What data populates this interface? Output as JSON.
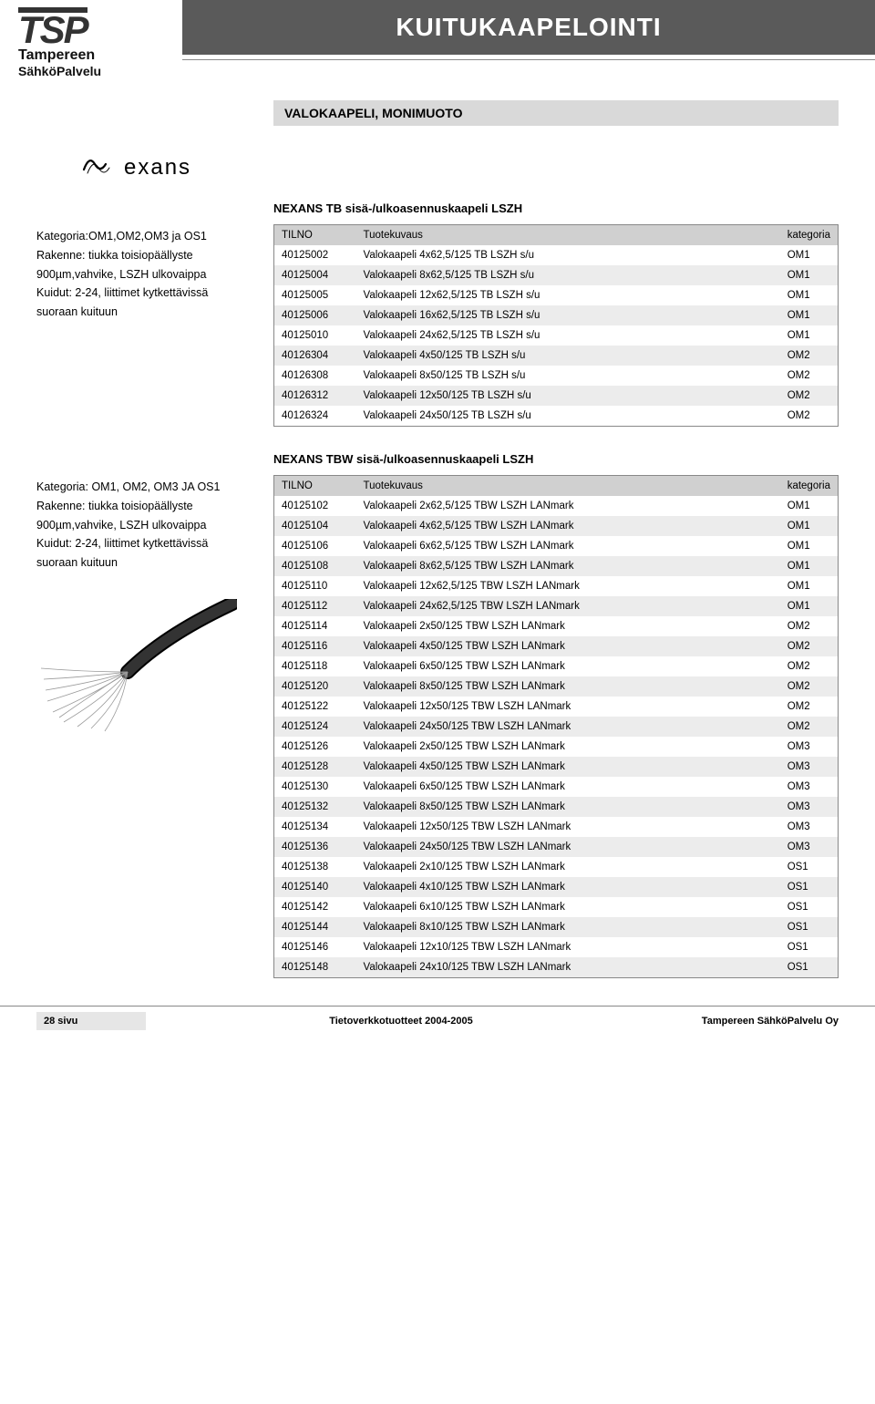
{
  "header": {
    "logo_main": "TSP",
    "logo_line1": "Tampereen",
    "logo_line2": "SähköPalvelu",
    "title": "KUITUKAAPELOINTI"
  },
  "section1": {
    "heading": "VALOKAAPELI, MONIMUOTO",
    "brand_text": "exans",
    "sub_heading": "NEXANS TB sisä-/ulkoasennuskaapeli LSZH",
    "desc": {
      "l1": "Kategoria:OM1,OM2,OM3 ja OS1",
      "l2": "Rakenne: tiukka toisiopäällyste",
      "l3": "900µm,vahvike, LSZH ulkovaippa",
      "l4": "Kuidut: 2-24, liittimet kytkettävissä",
      "l5": "suoraan kuituun"
    },
    "table": {
      "col_tilno": "TILNO",
      "col_desc": "Tuotekuvaus",
      "col_kat": "kategoria",
      "rows": [
        {
          "code": "40125002",
          "desc": "Valokaapeli 4x62,5/125 TB LSZH s/u",
          "kat": "OM1"
        },
        {
          "code": "40125004",
          "desc": "Valokaapeli 8x62,5/125 TB LSZH s/u",
          "kat": "OM1"
        },
        {
          "code": "40125005",
          "desc": "Valokaapeli 12x62,5/125 TB LSZH s/u",
          "kat": "OM1"
        },
        {
          "code": "40125006",
          "desc": "Valokaapeli 16x62,5/125 TB LSZH s/u",
          "kat": "OM1"
        },
        {
          "code": "40125010",
          "desc": "Valokaapeli 24x62,5/125 TB LSZH s/u",
          "kat": "OM1"
        },
        {
          "code": "40126304",
          "desc": "Valokaapeli 4x50/125 TB LSZH s/u",
          "kat": "OM2"
        },
        {
          "code": "40126308",
          "desc": "Valokaapeli 8x50/125 TB LSZH s/u",
          "kat": "OM2"
        },
        {
          "code": "40126312",
          "desc": "Valokaapeli 12x50/125 TB LSZH s/u",
          "kat": "OM2"
        },
        {
          "code": "40126324",
          "desc": "Valokaapeli 24x50/125 TB LSZH s/u",
          "kat": "OM2"
        }
      ]
    }
  },
  "section2": {
    "sub_heading": "NEXANS TBW sisä-/ulkoasennuskaapeli LSZH",
    "desc": {
      "l1": "Kategoria: OM1, OM2, OM3 JA OS1",
      "l2": "Rakenne: tiukka toisiopäällyste",
      "l3": "900µm,vahvike, LSZH ulkovaippa",
      "l4": "Kuidut: 2-24, liittimet kytkettävissä",
      "l5": "suoraan kuituun"
    },
    "table": {
      "col_tilno": "TILNO",
      "col_desc": "Tuotekuvaus",
      "col_kat": "kategoria",
      "rows": [
        {
          "code": "40125102",
          "desc": "Valokaapeli 2x62,5/125 TBW LSZH LANmark",
          "kat": "OM1"
        },
        {
          "code": "40125104",
          "desc": "Valokaapeli 4x62,5/125 TBW LSZH LANmark",
          "kat": "OM1"
        },
        {
          "code": "40125106",
          "desc": "Valokaapeli 6x62,5/125 TBW LSZH LANmark",
          "kat": "OM1"
        },
        {
          "code": "40125108",
          "desc": "Valokaapeli 8x62,5/125 TBW LSZH LANmark",
          "kat": "OM1"
        },
        {
          "code": "40125110",
          "desc": "Valokaapeli 12x62,5/125 TBW LSZH LANmark",
          "kat": "OM1"
        },
        {
          "code": "40125112",
          "desc": "Valokaapeli 24x62,5/125 TBW LSZH LANmark",
          "kat": "OM1"
        },
        {
          "code": "40125114",
          "desc": "Valokaapeli 2x50/125 TBW LSZH LANmark",
          "kat": "OM2"
        },
        {
          "code": "40125116",
          "desc": "Valokaapeli 4x50/125 TBW LSZH LANmark",
          "kat": "OM2"
        },
        {
          "code": "40125118",
          "desc": "Valokaapeli 6x50/125 TBW LSZH LANmark",
          "kat": "OM2"
        },
        {
          "code": "40125120",
          "desc": "Valokaapeli 8x50/125 TBW LSZH LANmark",
          "kat": "OM2"
        },
        {
          "code": "40125122",
          "desc": "Valokaapeli 12x50/125 TBW LSZH LANmark",
          "kat": "OM2"
        },
        {
          "code": "40125124",
          "desc": "Valokaapeli 24x50/125 TBW LSZH LANmark",
          "kat": "OM2"
        },
        {
          "code": "40125126",
          "desc": "Valokaapeli 2x50/125 TBW LSZH LANmark",
          "kat": "OM3"
        },
        {
          "code": "40125128",
          "desc": "Valokaapeli 4x50/125 TBW LSZH LANmark",
          "kat": "OM3"
        },
        {
          "code": "40125130",
          "desc": "Valokaapeli 6x50/125 TBW LSZH LANmark",
          "kat": "OM3"
        },
        {
          "code": "40125132",
          "desc": "Valokaapeli 8x50/125 TBW LSZH LANmark",
          "kat": "OM3"
        },
        {
          "code": "40125134",
          "desc": "Valokaapeli 12x50/125 TBW LSZH LANmark",
          "kat": "OM3"
        },
        {
          "code": "40125136",
          "desc": "Valokaapeli 24x50/125 TBW LSZH LANmark",
          "kat": "OM3"
        },
        {
          "code": "40125138",
          "desc": "Valokaapeli 2x10/125 TBW LSZH LANmark",
          "kat": "OS1"
        },
        {
          "code": "40125140",
          "desc": "Valokaapeli 4x10/125 TBW LSZH LANmark",
          "kat": "OS1"
        },
        {
          "code": "40125142",
          "desc": "Valokaapeli 6x10/125 TBW LSZH LANmark",
          "kat": "OS1"
        },
        {
          "code": "40125144",
          "desc": "Valokaapeli 8x10/125 TBW LSZH LANmark",
          "kat": "OS1"
        },
        {
          "code": "40125146",
          "desc": "Valokaapeli 12x10/125 TBW LSZH LANmark",
          "kat": "OS1"
        },
        {
          "code": "40125148",
          "desc": "Valokaapeli 24x10/125 TBW LSZH LANmark",
          "kat": "OS1"
        }
      ]
    }
  },
  "footer": {
    "page": "28 sivu",
    "center": "Tietoverkkotuotteet 2004-2005",
    "right": "Tampereen SähköPalvelu Oy"
  },
  "colors": {
    "title_bg": "#5a5a5a",
    "heading_bg": "#d9d9d9",
    "row_alt": "#ececec",
    "border": "#888888"
  }
}
